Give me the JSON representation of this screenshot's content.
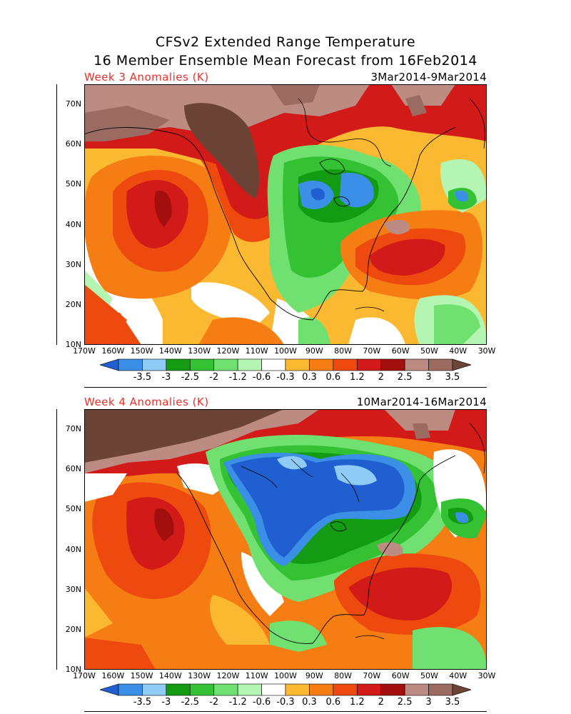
{
  "title": {
    "line1": "CFSv2 Extended Range Temperature",
    "line2": "16 Member Ensemble Mean Forecast from 16Feb2014"
  },
  "panels": [
    {
      "label": "Week 3 Anomalies (K)",
      "dates": "3Mar2014-9Mar2014"
    },
    {
      "label": "Week 4 Anomalies (K)",
      "dates": "10Mar2014-16Mar2014"
    }
  ],
  "axes": {
    "lat_labels": [
      "70N",
      "60N",
      "50N",
      "40N",
      "30N",
      "20N",
      "10N"
    ],
    "lon_labels": [
      "170W",
      "160W",
      "150W",
      "140W",
      "130W",
      "120W",
      "110W",
      "100W",
      "90W",
      "80W",
      "70W",
      "60W",
      "50W",
      "40W",
      "30W"
    ]
  },
  "colorbar": {
    "labels": [
      "-3.5",
      "-3",
      "-2.5",
      "-2",
      "-1.2",
      "-0.6",
      "-0.3",
      "0.3",
      "0.6",
      "1.2",
      "2",
      "2.5",
      "3",
      "3.5"
    ],
    "colors": [
      "#1f5fd0",
      "#3b8fe6",
      "#8ecbf5",
      "#139b13",
      "#34c234",
      "#70e070",
      "#b4f5b4",
      "#ffffff",
      "#fbb931",
      "#f57d14",
      "#ee4a10",
      "#d21a18",
      "#a30e0e",
      "#bc8c82",
      "#9b6b62",
      "#6b4436"
    ]
  }
}
